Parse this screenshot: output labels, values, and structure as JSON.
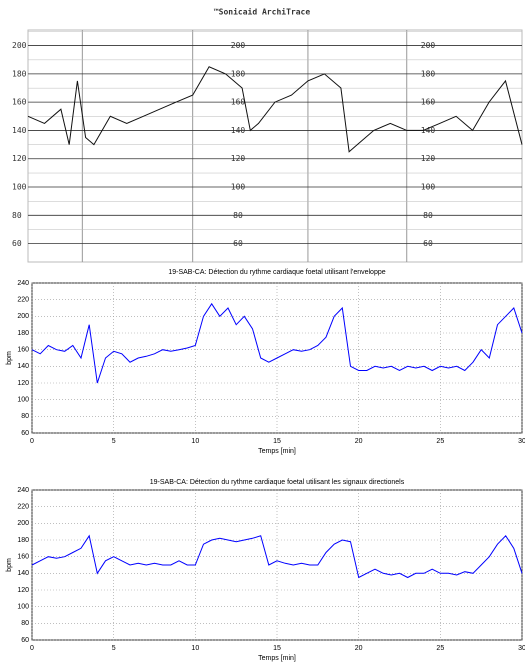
{
  "chart_data": [
    {
      "type": "line",
      "title": "™Sonicaid ArchiTrace",
      "x": [
        0,
        1,
        2,
        2.5,
        3,
        3.5,
        4,
        5,
        6,
        7,
        8,
        9,
        10,
        11,
        12,
        13,
        13.5,
        14,
        15,
        16,
        17,
        18,
        19,
        19.5,
        20,
        21,
        22,
        23,
        24,
        25,
        26,
        27,
        28,
        29,
        30
      ],
      "series": [
        {
          "color": "#111111",
          "values": [
            150,
            145,
            155,
            130,
            175,
            135,
            130,
            150,
            145,
            150,
            155,
            160,
            165,
            185,
            180,
            170,
            140,
            145,
            160,
            165,
            175,
            180,
            170,
            125,
            130,
            140,
            145,
            140,
            140,
            145,
            150,
            140,
            160,
            175,
            130
          ]
        }
      ],
      "xlim": [
        0,
        30
      ],
      "ylim": [
        47,
        211
      ],
      "yticks": [
        60,
        80,
        100,
        120,
        140,
        160,
        180,
        200
      ],
      "grid": true
    },
    {
      "type": "line",
      "title": "19-SAB-CA: Détection du rythme cardiaque foetal utilisant l'enveloppe",
      "x_label": "Temps [min]",
      "y_label": "bpm",
      "x": [
        0,
        0.5,
        1,
        1.5,
        2,
        2.5,
        3,
        3.5,
        4,
        4.5,
        5,
        5.5,
        6,
        6.5,
        7,
        7.5,
        8,
        8.5,
        9,
        9.5,
        10,
        10.5,
        11,
        11.5,
        12,
        12.5,
        13,
        13.5,
        14,
        14.5,
        15,
        15.5,
        16,
        16.5,
        17,
        17.5,
        18,
        18.5,
        19,
        19.5,
        20,
        20.5,
        21,
        21.5,
        22,
        22.5,
        23,
        23.5,
        24,
        24.5,
        25,
        25.5,
        26,
        26.5,
        27,
        27.5,
        28,
        28.5,
        29,
        29.5,
        30
      ],
      "series": [
        {
          "color": "#0000ff",
          "values": [
            160,
            155,
            165,
            160,
            158,
            165,
            150,
            190,
            120,
            150,
            158,
            155,
            145,
            150,
            152,
            155,
            160,
            158,
            160,
            162,
            165,
            200,
            215,
            200,
            210,
            190,
            200,
            185,
            150,
            145,
            150,
            155,
            160,
            158,
            160,
            165,
            175,
            200,
            210,
            140,
            135,
            135,
            140,
            138,
            140,
            135,
            140,
            138,
            140,
            135,
            140,
            138,
            140,
            135,
            145,
            160,
            150,
            190,
            200,
            210,
            180
          ]
        }
      ],
      "xlim": [
        0,
        30
      ],
      "xticks": [
        0,
        5,
        10,
        15,
        20,
        25,
        30
      ],
      "ylim": [
        60,
        240
      ],
      "yticks": [
        60,
        80,
        100,
        120,
        140,
        160,
        180,
        200,
        220,
        240
      ],
      "grid": true
    },
    {
      "type": "line",
      "title": "19-SAB-CA: Détection du rythme cardiaque foetal utilisant les signaux directionels",
      "x_label": "Temps [min]",
      "y_label": "bpm",
      "x": [
        0,
        0.5,
        1,
        1.5,
        2,
        2.5,
        3,
        3.5,
        4,
        4.5,
        5,
        5.5,
        6,
        6.5,
        7,
        7.5,
        8,
        8.5,
        9,
        9.5,
        10,
        10.5,
        11,
        11.5,
        12,
        12.5,
        13,
        13.5,
        14,
        14.5,
        15,
        15.5,
        16,
        16.5,
        17,
        17.5,
        18,
        18.5,
        19,
        19.5,
        20,
        20.5,
        21,
        21.5,
        22,
        22.5,
        23,
        23.5,
        24,
        24.5,
        25,
        25.5,
        26,
        26.5,
        27,
        27.5,
        28,
        28.5,
        29,
        29.5,
        30
      ],
      "series": [
        {
          "color": "#0000ff",
          "values": [
            150,
            155,
            160,
            158,
            160,
            165,
            170,
            185,
            140,
            155,
            160,
            155,
            150,
            152,
            150,
            152,
            150,
            150,
            155,
            150,
            150,
            175,
            180,
            182,
            180,
            178,
            180,
            182,
            185,
            150,
            155,
            152,
            150,
            152,
            150,
            150,
            165,
            175,
            180,
            178,
            135,
            140,
            145,
            140,
            138,
            140,
            135,
            140,
            140,
            145,
            140,
            140,
            138,
            142,
            140,
            150,
            160,
            175,
            185,
            170,
            140
          ]
        }
      ],
      "xlim": [
        0,
        30
      ],
      "xticks": [
        0,
        5,
        10,
        15,
        20,
        25,
        30
      ],
      "ylim": [
        60,
        240
      ],
      "yticks": [
        60,
        80,
        100,
        120,
        140,
        160,
        180,
        200,
        220,
        240
      ],
      "grid": true
    }
  ]
}
